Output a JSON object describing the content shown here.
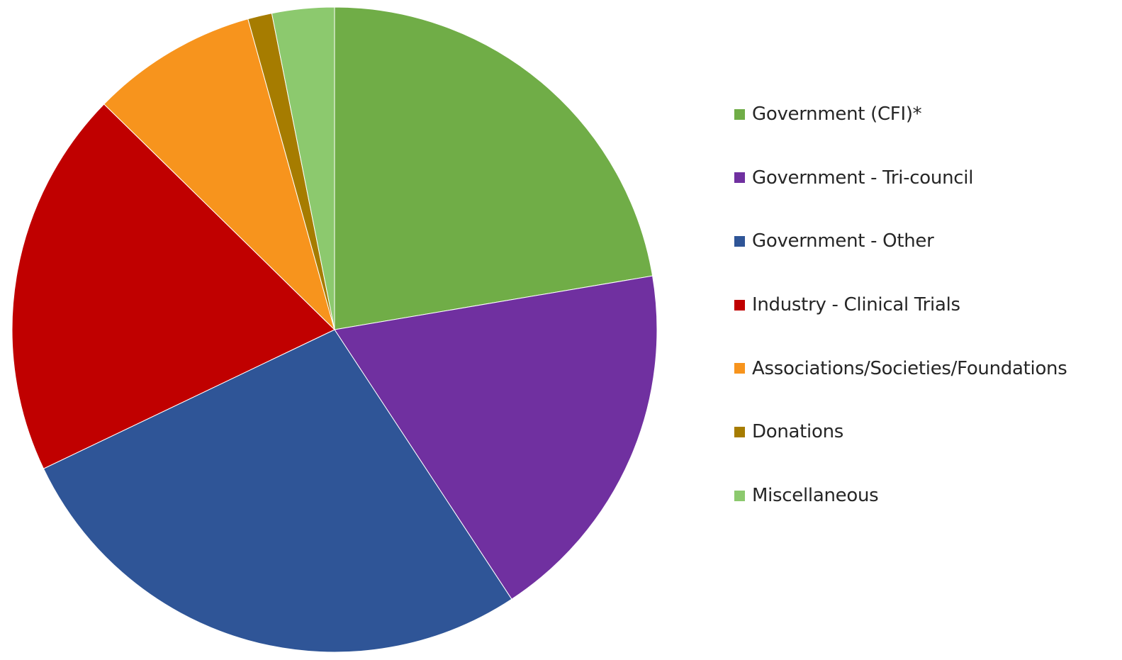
{
  "chart_data": {
    "type": "pie",
    "title": "",
    "legend_position": "right",
    "start_angle": "12 o'clock",
    "direction": "clockwise",
    "slices": [
      {
        "label": "Government (CFI)*",
        "value": 22.2,
        "color": "#70ad47"
      },
      {
        "label": "Government - Tri-council",
        "value": 18.3,
        "color": "#7030a0"
      },
      {
        "label": "Government - Other",
        "value": 27.0,
        "color": "#2f5597"
      },
      {
        "label": "Industry - Clinical Trials",
        "value": 19.3,
        "color": "#c00000"
      },
      {
        "label": "Associations/Societies/Foundations",
        "value": 8.3,
        "color": "#f7941d"
      },
      {
        "label": "Donations",
        "value": 1.2,
        "color": "#a67c00"
      },
      {
        "label": "Miscellaneous",
        "value": 3.1,
        "color": "#8cc96e"
      }
    ]
  }
}
